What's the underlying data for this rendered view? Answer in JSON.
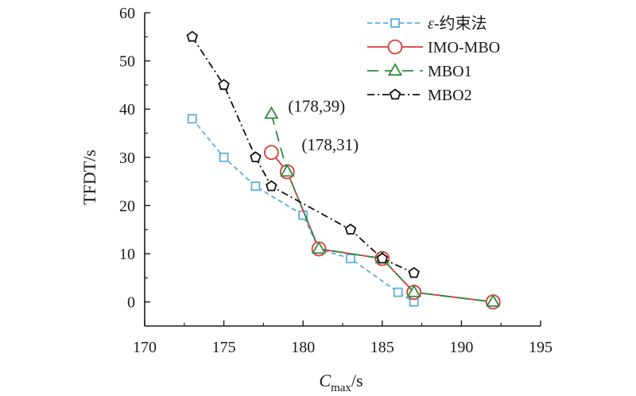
{
  "chart_data": {
    "type": "line",
    "title": "",
    "xlabel": "Cmax/s",
    "xlabel_main": "C",
    "xlabel_sub": "max",
    "xlabel_unit": "/s",
    "ylabel": "TFDT/s",
    "xlim": [
      170,
      195
    ],
    "ylim": [
      -5,
      60
    ],
    "xticks": [
      170,
      175,
      180,
      185,
      190,
      195
    ],
    "yticks": [
      0,
      10,
      20,
      30,
      40,
      50,
      60
    ],
    "grid": false,
    "legend_position": "top-right",
    "series": [
      {
        "name": "ε-约束法",
        "color": "#5aaee0",
        "line_style": "dashed",
        "marker": "square",
        "points": [
          [
            173,
            38
          ],
          [
            175,
            30
          ],
          [
            177,
            24
          ],
          [
            180,
            18
          ],
          [
            181,
            11
          ],
          [
            183,
            9
          ],
          [
            186,
            2
          ],
          [
            187,
            0
          ]
        ]
      },
      {
        "name": "IMO-MBO",
        "color": "#d93a3a",
        "line_style": "solid",
        "marker": "circle",
        "points": [
          [
            178,
            31
          ],
          [
            179,
            27
          ],
          [
            181,
            11
          ],
          [
            185,
            9
          ],
          [
            187,
            2
          ],
          [
            192,
            0
          ]
        ]
      },
      {
        "name": "MBO1",
        "color": "#2e8b3a",
        "line_style": "dashed-long",
        "marker": "triangle",
        "points": [
          [
            178,
            39
          ],
          [
            179,
            27
          ],
          [
            181,
            11
          ],
          [
            185,
            9
          ],
          [
            187,
            2
          ],
          [
            192,
            0
          ]
        ]
      },
      {
        "name": "MBO2",
        "color": "#111111",
        "line_style": "dashdot",
        "marker": "pentagon",
        "points": [
          [
            173,
            55
          ],
          [
            175,
            45
          ],
          [
            177,
            30
          ],
          [
            178,
            24
          ],
          [
            183,
            15
          ],
          [
            185,
            9
          ],
          [
            187,
            6
          ]
        ]
      }
    ],
    "annotations": [
      {
        "text": "(178,39)",
        "x": 178,
        "y": 39
      },
      {
        "text": "(178,31)",
        "x": 178,
        "y": 31
      }
    ]
  }
}
